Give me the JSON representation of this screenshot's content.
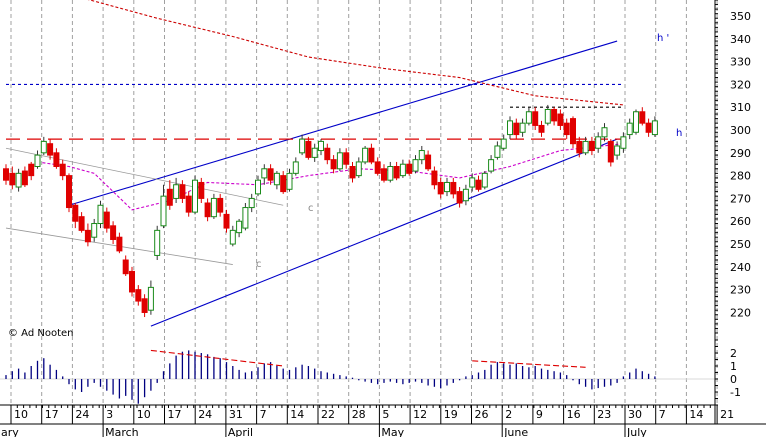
{
  "chart_data": {
    "type": "candlestick",
    "title": "",
    "xlabel": "",
    "ylabel": "",
    "grid": true,
    "price_axis": {
      "ticks": [
        220,
        230,
        240,
        250,
        260,
        270,
        280,
        290,
        300,
        310,
        320,
        330,
        340,
        350
      ],
      "range": [
        211,
        357
      ]
    },
    "volume_axis": {
      "ticks": [
        2,
        1,
        0,
        -1
      ],
      "tick_labels": [
        "2",
        "1",
        "0",
        "-1"
      ],
      "range": [
        -2,
        3
      ]
    },
    "x_axis": {
      "day_labels": [
        "10",
        "17",
        "24",
        "3",
        "10",
        "17",
        "24",
        "31",
        "7",
        "14",
        "22",
        "28",
        "5",
        "12",
        "19",
        "26",
        "2",
        "9",
        "16",
        "23",
        "30",
        "7",
        "14",
        "21"
      ],
      "month_labels": [
        {
          "label": "February",
          "at": "10"
        },
        {
          "label": "March",
          "at": "3"
        },
        {
          "label": "April",
          "at": "31"
        },
        {
          "label": "May",
          "at": "5"
        },
        {
          "label": "June",
          "at": "2"
        },
        {
          "label": "July",
          "at": "30"
        }
      ]
    },
    "candles": [
      {
        "o": 283,
        "c": 278,
        "h": 285,
        "l": 276,
        "up": false
      },
      {
        "o": 281,
        "c": 276,
        "h": 284,
        "l": 274,
        "up": false
      },
      {
        "o": 275,
        "c": 281,
        "h": 283,
        "l": 273,
        "up": true
      },
      {
        "o": 282,
        "c": 276,
        "h": 284,
        "l": 275,
        "up": false
      },
      {
        "o": 285,
        "c": 280,
        "h": 286,
        "l": 278,
        "up": false
      },
      {
        "o": 284,
        "c": 289,
        "h": 291,
        "l": 283,
        "up": true
      },
      {
        "o": 290,
        "c": 295,
        "h": 297,
        "l": 289,
        "up": true
      },
      {
        "o": 294,
        "c": 289,
        "h": 296,
        "l": 287,
        "up": false
      },
      {
        "o": 290,
        "c": 284,
        "h": 292,
        "l": 283,
        "up": false
      },
      {
        "o": 285,
        "c": 280,
        "h": 287,
        "l": 278,
        "up": false
      },
      {
        "o": 280,
        "c": 266,
        "h": 281,
        "l": 264,
        "up": false
      },
      {
        "o": 267,
        "c": 260,
        "h": 268,
        "l": 257,
        "up": false
      },
      {
        "o": 262,
        "c": 256,
        "h": 264,
        "l": 255,
        "up": false
      },
      {
        "o": 256,
        "c": 251,
        "h": 259,
        "l": 249,
        "up": false
      },
      {
        "o": 253,
        "c": 259,
        "h": 261,
        "l": 251,
        "up": true
      },
      {
        "o": 259,
        "c": 267,
        "h": 269,
        "l": 257,
        "up": true
      },
      {
        "o": 264,
        "c": 257,
        "h": 266,
        "l": 255,
        "up": false
      },
      {
        "o": 258,
        "c": 252,
        "h": 260,
        "l": 250,
        "up": false
      },
      {
        "o": 253,
        "c": 247,
        "h": 255,
        "l": 246,
        "up": false
      },
      {
        "o": 243,
        "c": 237,
        "h": 245,
        "l": 236,
        "up": false
      },
      {
        "o": 238,
        "c": 229,
        "h": 240,
        "l": 227,
        "up": false
      },
      {
        "o": 230,
        "c": 225,
        "h": 232,
        "l": 223,
        "up": false
      },
      {
        "o": 226,
        "c": 220,
        "h": 228,
        "l": 218,
        "up": false
      },
      {
        "o": 221,
        "c": 231,
        "h": 234,
        "l": 219,
        "up": true
      },
      {
        "o": 245,
        "c": 256,
        "h": 258,
        "l": 243,
        "up": true
      },
      {
        "o": 258,
        "c": 271,
        "h": 276,
        "l": 257,
        "up": true
      },
      {
        "o": 274,
        "c": 267,
        "h": 278,
        "l": 265,
        "up": false
      },
      {
        "o": 270,
        "c": 276,
        "h": 279,
        "l": 268,
        "up": true
      },
      {
        "o": 276,
        "c": 270,
        "h": 278,
        "l": 268,
        "up": false
      },
      {
        "o": 271,
        "c": 264,
        "h": 273,
        "l": 262,
        "up": false
      },
      {
        "o": 264,
        "c": 278,
        "h": 280,
        "l": 263,
        "up": true
      },
      {
        "o": 277,
        "c": 270,
        "h": 279,
        "l": 268,
        "up": false
      },
      {
        "o": 268,
        "c": 262,
        "h": 270,
        "l": 260,
        "up": false
      },
      {
        "o": 262,
        "c": 270,
        "h": 272,
        "l": 261,
        "up": true
      },
      {
        "o": 270,
        "c": 264,
        "h": 272,
        "l": 262,
        "up": false
      },
      {
        "o": 263,
        "c": 257,
        "h": 265,
        "l": 255,
        "up": false
      },
      {
        "o": 250,
        "c": 256,
        "h": 258,
        "l": 249,
        "up": true
      },
      {
        "o": 255,
        "c": 260,
        "h": 261,
        "l": 253,
        "up": true
      },
      {
        "o": 257,
        "c": 266,
        "h": 268,
        "l": 256,
        "up": true
      },
      {
        "o": 266,
        "c": 270,
        "h": 272,
        "l": 264,
        "up": true
      },
      {
        "o": 272,
        "c": 278,
        "h": 280,
        "l": 271,
        "up": true
      },
      {
        "o": 279,
        "c": 283,
        "h": 285,
        "l": 276,
        "up": true
      },
      {
        "o": 283,
        "c": 278,
        "h": 285,
        "l": 276,
        "up": false
      },
      {
        "o": 276,
        "c": 281,
        "h": 282,
        "l": 274,
        "up": true
      },
      {
        "o": 280,
        "c": 273,
        "h": 282,
        "l": 272,
        "up": false
      },
      {
        "o": 274,
        "c": 281,
        "h": 283,
        "l": 273,
        "up": true
      },
      {
        "o": 281,
        "c": 286,
        "h": 288,
        "l": 280,
        "up": true
      },
      {
        "o": 290,
        "c": 296,
        "h": 298,
        "l": 289,
        "up": true
      },
      {
        "o": 295,
        "c": 288,
        "h": 297,
        "l": 287,
        "up": false
      },
      {
        "o": 288,
        "c": 292,
        "h": 294,
        "l": 286,
        "up": true
      },
      {
        "o": 291,
        "c": 295,
        "h": 296,
        "l": 289,
        "up": true
      },
      {
        "o": 292,
        "c": 287,
        "h": 294,
        "l": 285,
        "up": false
      },
      {
        "o": 287,
        "c": 283,
        "h": 289,
        "l": 281,
        "up": false
      },
      {
        "o": 283,
        "c": 290,
        "h": 292,
        "l": 282,
        "up": true
      },
      {
        "o": 290,
        "c": 285,
        "h": 292,
        "l": 283,
        "up": false
      },
      {
        "o": 284,
        "c": 279,
        "h": 286,
        "l": 277,
        "up": false
      },
      {
        "o": 280,
        "c": 286,
        "h": 288,
        "l": 279,
        "up": true
      },
      {
        "o": 286,
        "c": 292,
        "h": 293,
        "l": 285,
        "up": true
      },
      {
        "o": 292,
        "c": 286,
        "h": 294,
        "l": 285,
        "up": false
      },
      {
        "o": 286,
        "c": 281,
        "h": 288,
        "l": 280,
        "up": false
      },
      {
        "o": 283,
        "c": 278,
        "h": 285,
        "l": 277,
        "up": false
      },
      {
        "o": 278,
        "c": 284,
        "h": 286,
        "l": 277,
        "up": true
      },
      {
        "o": 284,
        "c": 279,
        "h": 286,
        "l": 278,
        "up": false
      },
      {
        "o": 280,
        "c": 285,
        "h": 287,
        "l": 279,
        "up": true
      },
      {
        "o": 285,
        "c": 281,
        "h": 287,
        "l": 280,
        "up": false
      },
      {
        "o": 282,
        "c": 287,
        "h": 289,
        "l": 281,
        "up": true
      },
      {
        "o": 287,
        "c": 291,
        "h": 293,
        "l": 285,
        "up": true
      },
      {
        "o": 289,
        "c": 283,
        "h": 291,
        "l": 282,
        "up": false
      },
      {
        "o": 282,
        "c": 276,
        "h": 284,
        "l": 274,
        "up": false
      },
      {
        "o": 277,
        "c": 272,
        "h": 279,
        "l": 270,
        "up": false
      },
      {
        "o": 273,
        "c": 277,
        "h": 279,
        "l": 271,
        "up": true
      },
      {
        "o": 277,
        "c": 272,
        "h": 279,
        "l": 270,
        "up": false
      },
      {
        "o": 273,
        "c": 268,
        "h": 275,
        "l": 266,
        "up": false
      },
      {
        "o": 269,
        "c": 274,
        "h": 276,
        "l": 267,
        "up": true
      },
      {
        "o": 275,
        "c": 279,
        "h": 281,
        "l": 273,
        "up": true
      },
      {
        "o": 278,
        "c": 274,
        "h": 280,
        "l": 273,
        "up": false
      },
      {
        "o": 275,
        "c": 281,
        "h": 282,
        "l": 274,
        "up": true
      },
      {
        "o": 282,
        "c": 287,
        "h": 289,
        "l": 281,
        "up": true
      },
      {
        "o": 288,
        "c": 293,
        "h": 295,
        "l": 287,
        "up": true
      },
      {
        "o": 292,
        "c": 296,
        "h": 298,
        "l": 291,
        "up": true
      },
      {
        "o": 298,
        "c": 304,
        "h": 306,
        "l": 296,
        "up": true
      },
      {
        "o": 303,
        "c": 298,
        "h": 305,
        "l": 296,
        "up": false
      },
      {
        "o": 299,
        "c": 303,
        "h": 305,
        "l": 297,
        "up": true
      },
      {
        "o": 303,
        "c": 308,
        "h": 310,
        "l": 302,
        "up": true
      },
      {
        "o": 308,
        "c": 302,
        "h": 310,
        "l": 300,
        "up": false
      },
      {
        "o": 302,
        "c": 299,
        "h": 304,
        "l": 297,
        "up": false
      },
      {
        "o": 303,
        "c": 309,
        "h": 311,
        "l": 302,
        "up": true
      },
      {
        "o": 309,
        "c": 304,
        "h": 310,
        "l": 302,
        "up": false
      },
      {
        "o": 307,
        "c": 302,
        "h": 309,
        "l": 300,
        "up": false
      },
      {
        "o": 303,
        "c": 298,
        "h": 305,
        "l": 296,
        "up": false
      },
      {
        "o": 305,
        "c": 294,
        "h": 306,
        "l": 292,
        "up": false
      },
      {
        "o": 295,
        "c": 290,
        "h": 297,
        "l": 288,
        "up": false
      },
      {
        "o": 290,
        "c": 295,
        "h": 297,
        "l": 289,
        "up": true
      },
      {
        "o": 295,
        "c": 291,
        "h": 297,
        "l": 289,
        "up": false
      },
      {
        "o": 292,
        "c": 297,
        "h": 299,
        "l": 290,
        "up": true
      },
      {
        "o": 297,
        "c": 301,
        "h": 303,
        "l": 295,
        "up": true
      },
      {
        "o": 295,
        "c": 286,
        "h": 296,
        "l": 284,
        "up": false
      },
      {
        "o": 289,
        "c": 293,
        "h": 295,
        "l": 287,
        "up": true
      },
      {
        "o": 292,
        "c": 297,
        "h": 299,
        "l": 290,
        "up": true
      },
      {
        "o": 298,
        "c": 303,
        "h": 305,
        "l": 296,
        "up": true
      },
      {
        "o": 299,
        "c": 308,
        "h": 309,
        "l": 298,
        "up": true
      },
      {
        "o": 308,
        "c": 303,
        "h": 310,
        "l": 302,
        "up": false
      },
      {
        "o": 303,
        "c": 299,
        "h": 305,
        "l": 297,
        "up": false
      },
      {
        "o": 298,
        "c": 304,
        "h": 306,
        "l": 297,
        "up": true
      }
    ],
    "volume_bars": [
      0.3,
      0.6,
      0.8,
      0.5,
      1.0,
      1.4,
      1.6,
      1.1,
      0.7,
      0.2,
      -0.4,
      -0.8,
      -1.0,
      -0.6,
      -0.3,
      -0.6,
      -0.9,
      -1.2,
      -1.5,
      -1.3,
      -1.6,
      -1.9,
      -1.4,
      -0.9,
      -0.3,
      0.6,
      1.2,
      1.8,
      2.1,
      2.2,
      2.1,
      2.0,
      1.9,
      1.7,
      1.6,
      1.3,
      1.0,
      0.7,
      0.5,
      0.6,
      0.9,
      1.2,
      1.3,
      1.0,
      0.8,
      0.7,
      0.9,
      1.1,
      1.0,
      0.8,
      0.6,
      0.5,
      0.4,
      0.3,
      0.2,
      0.1,
      -0.1,
      -0.2,
      -0.3,
      -0.4,
      -0.3,
      -0.2,
      -0.3,
      -0.4,
      -0.3,
      -0.2,
      -0.3,
      -0.5,
      -0.6,
      -0.7,
      -0.5,
      -0.3,
      -0.1,
      0.2,
      0.3,
      0.5,
      0.7,
      1.1,
      1.3,
      1.2,
      1.1,
      1.2,
      1.0,
      0.9,
      1.0,
      0.8,
      0.7,
      0.6,
      0.5,
      0.3,
      -0.1,
      -0.4,
      -0.6,
      -0.8,
      -0.7,
      -0.6,
      -0.5,
      -0.3,
      0.2,
      0.5,
      0.8,
      0.6,
      0.4,
      0.2
    ],
    "overlays": [
      {
        "name": "",
        "style": "solid",
        "color": "#0000c8",
        "points": [
          [
            10,
            267
          ],
          [
            97,
            339
          ]
        ]
      },
      {
        "name": "",
        "style": "solid",
        "color": "#0000c8",
        "points": [
          [
            23,
            214
          ],
          [
            97,
            296
          ]
        ]
      },
      {
        "name": "",
        "style": "dashed",
        "color": "#dd0000",
        "points": [
          [
            0,
            296
          ],
          [
            98,
            296
          ]
        ]
      },
      {
        "name": "",
        "style": "dotted",
        "color": "#0000c8",
        "points": [
          [
            0,
            320
          ],
          [
            98,
            320
          ]
        ]
      },
      {
        "name": "",
        "style": "dotted",
        "color": "#000000",
        "points": [
          [
            80,
            310
          ],
          [
            98,
            310
          ]
        ]
      },
      {
        "name": "",
        "style": "thin",
        "color": "#999999",
        "points": [
          [
            0,
            292
          ],
          [
            44,
            267
          ]
        ]
      },
      {
        "name": "",
        "style": "thin",
        "color": "#999999",
        "points": [
          [
            0,
            257
          ],
          [
            36,
            241
          ]
        ]
      },
      {
        "name": "",
        "style": "dash-dot",
        "color": "#cc0000",
        "points": [
          [
            12,
            358
          ],
          [
            24,
            349
          ],
          [
            36,
            341
          ],
          [
            48,
            332
          ],
          [
            60,
            327
          ],
          [
            72,
            323
          ],
          [
            84,
            315
          ],
          [
            98,
            311
          ]
        ]
      },
      {
        "name": "",
        "style": "dash-dot",
        "color": "#cc00cc",
        "points": [
          [
            5,
            286
          ],
          [
            10,
            284
          ],
          [
            14,
            281
          ],
          [
            20,
            265
          ],
          [
            26,
            269
          ],
          [
            32,
            277
          ],
          [
            40,
            276
          ],
          [
            48,
            280
          ],
          [
            56,
            283
          ],
          [
            64,
            282
          ],
          [
            72,
            279
          ],
          [
            80,
            284
          ],
          [
            88,
            291
          ],
          [
            98,
            294
          ]
        ]
      }
    ],
    "indicator_lines": [
      {
        "color": "#dd0000",
        "points": [
          [
            23,
            2.2
          ],
          [
            44,
            1.0
          ]
        ]
      },
      {
        "color": "#dd0000",
        "points": [
          [
            74,
            1.4
          ],
          [
            92,
            0.9
          ]
        ]
      }
    ],
    "annotations": [
      {
        "text": "h '",
        "color": "#0000c8"
      },
      {
        "text": "h",
        "color": "#0000c8"
      },
      {
        "text": "c '",
        "color": "#888888"
      },
      {
        "text": "c",
        "color": "#888888"
      },
      {
        "text": "© Ad Nooten",
        "color": "#000000"
      }
    ]
  }
}
